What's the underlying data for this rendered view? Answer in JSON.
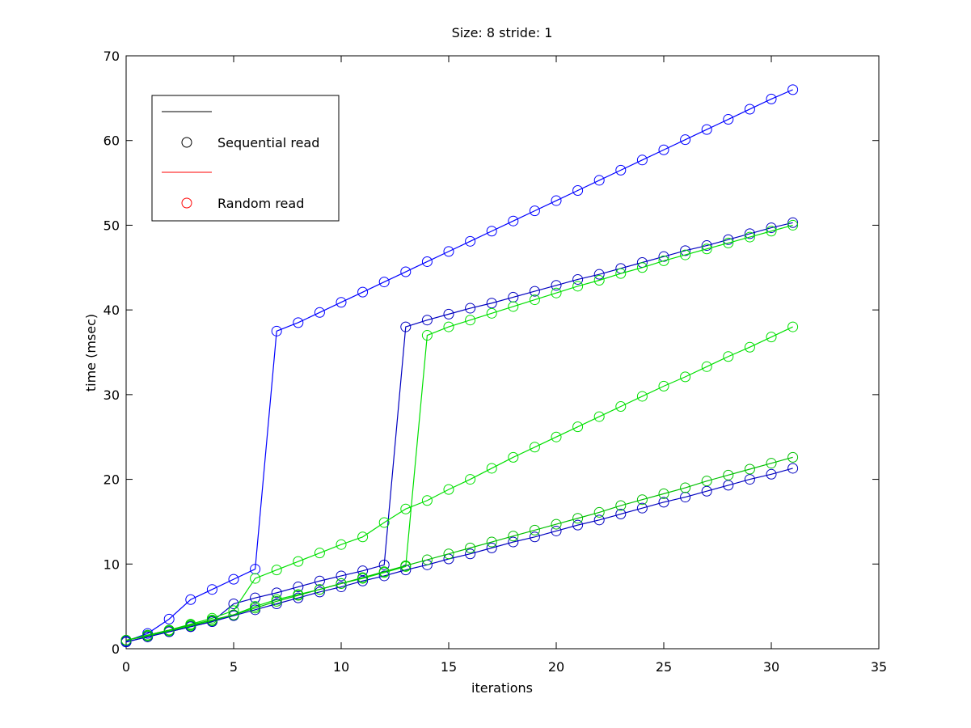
{
  "chart_data": {
    "type": "line",
    "title": "Size: 8 stride: 1",
    "xlabel": "iterations",
    "ylabel": "time (msec)",
    "xlim": [
      0,
      35
    ],
    "ylim": [
      0,
      70
    ],
    "xticks": [
      0,
      5,
      10,
      15,
      20,
      25,
      30,
      35
    ],
    "yticks": [
      0,
      10,
      20,
      30,
      40,
      50,
      60,
      70
    ],
    "marker": "circle",
    "legend_position": "upper left",
    "legend": [
      {
        "label": "Sequential read",
        "color": "#000000"
      },
      {
        "label": "Random read",
        "color": "#ff0000"
      }
    ],
    "x": [
      0,
      1,
      2,
      3,
      4,
      5,
      6,
      7,
      8,
      9,
      10,
      11,
      12,
      13,
      14,
      15,
      16,
      17,
      18,
      19,
      20,
      21,
      22,
      23,
      24,
      25,
      26,
      27,
      28,
      29,
      30,
      31
    ],
    "series": [
      {
        "color": "#0000ff",
        "values": [
          0.9,
          1.8,
          3.5,
          5.8,
          7.0,
          8.2,
          9.4,
          37.5,
          38.5,
          39.7,
          40.9,
          42.1,
          43.3,
          44.5,
          45.7,
          46.9,
          48.1,
          49.3,
          50.5,
          51.7,
          52.9,
          54.1,
          55.3,
          56.5,
          57.7,
          58.9,
          60.1,
          61.3,
          62.5,
          63.7,
          64.9,
          66.0
        ]
      },
      {
        "color": "#0000c0",
        "values": [
          0.8,
          1.4,
          2.0,
          2.6,
          3.2,
          5.3,
          6.0,
          6.6,
          7.3,
          8.0,
          8.6,
          9.2,
          9.9,
          38.0,
          38.8,
          39.5,
          40.2,
          40.8,
          41.5,
          42.2,
          42.9,
          43.6,
          44.2,
          44.9,
          45.6,
          46.3,
          47.0,
          47.6,
          48.3,
          49.0,
          49.7,
          50.3
        ]
      },
      {
        "color": "#00e000",
        "values": [
          1.0,
          1.5,
          2.1,
          2.7,
          3.3,
          4.0,
          5.0,
          5.8,
          6.4,
          7.0,
          7.7,
          8.3,
          9.0,
          9.7,
          37.0,
          38.0,
          38.8,
          39.6,
          40.4,
          41.2,
          42.0,
          42.8,
          43.5,
          44.3,
          45.0,
          45.8,
          46.5,
          47.2,
          47.9,
          48.6,
          49.3,
          50.0
        ]
      },
      {
        "color": "#00e000",
        "values": [
          1.0,
          1.6,
          2.2,
          2.9,
          3.6,
          4.5,
          8.3,
          9.3,
          10.3,
          11.3,
          12.3,
          13.2,
          14.9,
          16.5,
          17.5,
          18.8,
          20.0,
          21.3,
          22.6,
          23.8,
          25.0,
          26.2,
          27.4,
          28.6,
          29.8,
          31.0,
          32.1,
          33.3,
          34.5,
          35.6,
          36.8,
          38.0
        ]
      },
      {
        "color": "#0000c0",
        "values": [
          0.8,
          1.4,
          2.0,
          2.6,
          3.2,
          3.9,
          4.6,
          5.3,
          6.0,
          6.7,
          7.3,
          8.0,
          8.6,
          9.3,
          9.9,
          10.6,
          11.2,
          11.9,
          12.6,
          13.2,
          13.9,
          14.6,
          15.2,
          15.9,
          16.6,
          17.3,
          17.9,
          18.6,
          19.3,
          20.0,
          20.6,
          21.3
        ]
      },
      {
        "color": "#00c000",
        "values": [
          1.0,
          1.6,
          2.2,
          2.8,
          3.4,
          4.0,
          4.8,
          5.6,
          6.3,
          7.0,
          7.7,
          8.4,
          9.1,
          9.8,
          10.5,
          11.2,
          11.9,
          12.6,
          13.3,
          14.0,
          14.7,
          15.4,
          16.1,
          16.9,
          17.6,
          18.3,
          19.0,
          19.8,
          20.5,
          21.2,
          21.9,
          22.6
        ]
      }
    ]
  }
}
